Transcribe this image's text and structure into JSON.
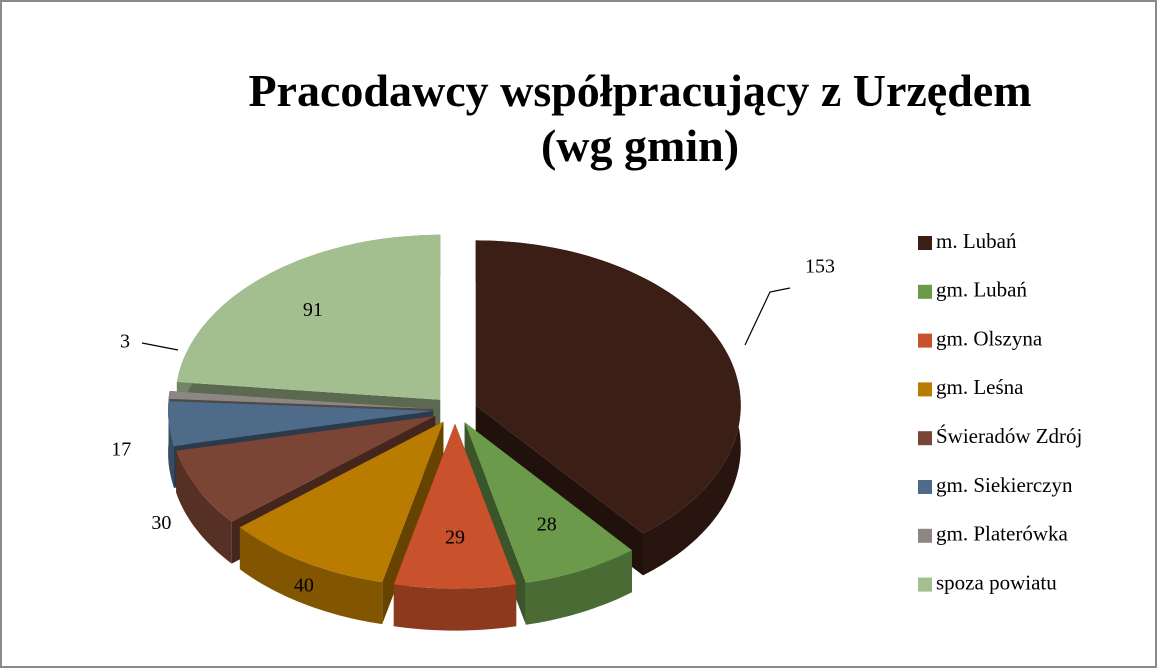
{
  "chart_data": {
    "type": "pie",
    "title": "Pracodawcy współpracujący z Urzędem (wg gmin)",
    "categories": [
      "m. Lubań",
      "gm. Lubań",
      "gm. Olszyna",
      "gm. Leśna",
      "Świeradów Zdrój",
      "gm. Siekierczyn",
      "gm. Platerówka",
      "spoza powiatu"
    ],
    "values": [
      153,
      28,
      29,
      40,
      30,
      17,
      3,
      91
    ],
    "colors": [
      "#3b1e16",
      "#6a9a4a",
      "#c9512b",
      "#b97b00",
      "#7b4535",
      "#4f6b8a",
      "#8e8682",
      "#a3be8f"
    ],
    "legend": "right"
  }
}
